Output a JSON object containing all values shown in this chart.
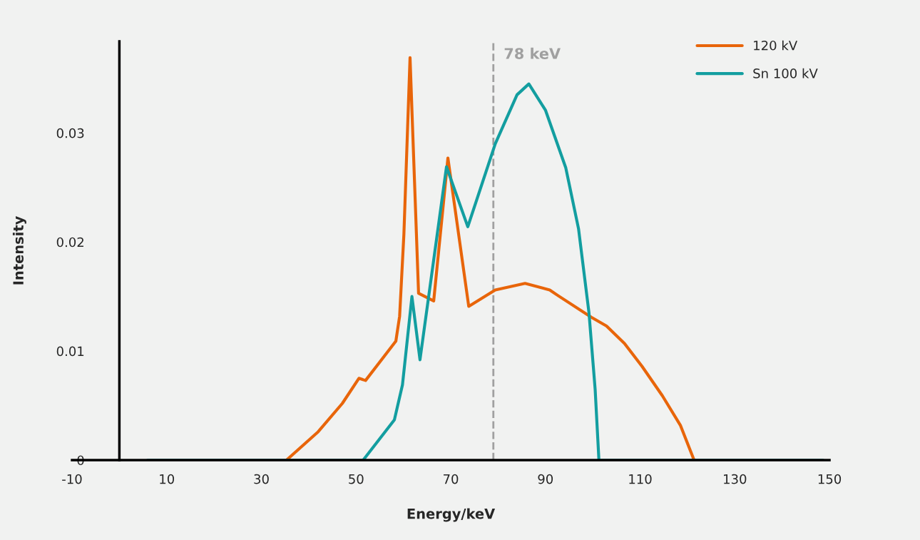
{
  "chart_data": {
    "type": "line",
    "xlabel": "Energy/keV",
    "ylabel": "Intensity",
    "xlim": [
      -10,
      150
    ],
    "xticks": [
      -10,
      10,
      30,
      50,
      70,
      90,
      110,
      130,
      150
    ],
    "ylim": [
      0,
      0.0384
    ],
    "yticks": [
      0,
      0.01,
      0.02,
      0.03
    ],
    "series": [
      {
        "name": "120 kV",
        "color": "#e8650a",
        "x": [
          35.3,
          42.0,
          47.1,
          50.6,
          52.0,
          58.4,
          59.2,
          60.1,
          61.4,
          63.2,
          66.4,
          69.4,
          73.8,
          79.4,
          85.7,
          90.9,
          92.6,
          99.7,
          102.9,
          106.7,
          110.4,
          114.7,
          118.5,
          121.4
        ],
        "values": [
          0,
          0.0026,
          0.0052,
          0.0075,
          0.0073,
          0.0109,
          0.0132,
          0.0207,
          0.0369,
          0.0153,
          0.0146,
          0.0277,
          0.0141,
          0.0156,
          0.0162,
          0.0156,
          0.0151,
          0.0131,
          0.0123,
          0.0107,
          0.0086,
          0.0059,
          0.0032,
          0
        ]
      },
      {
        "name": "Sn 100 kV",
        "color": "#139ea0",
        "x": [
          6.0,
          51.5,
          58.1,
          59.8,
          61.8,
          63.5,
          69.1,
          73.6,
          79.4,
          84.0,
          86.5,
          90.0,
          94.3,
          97.0,
          99.2,
          100.5,
          101.3,
          148.6
        ],
        "values": [
          0,
          0,
          0.0037,
          0.0069,
          0.015,
          0.0092,
          0.0269,
          0.0214,
          0.029,
          0.0335,
          0.0345,
          0.0321,
          0.0268,
          0.0212,
          0.0135,
          0.0065,
          0,
          0
        ]
      }
    ],
    "ref_lines": [
      {
        "axis": "x",
        "value": 79,
        "label": "78 keV",
        "color": "#a0a0a0",
        "line_style": "dashed"
      }
    ],
    "grid": false,
    "legend": "top right",
    "marker": "none",
    "line_style": "solid"
  }
}
